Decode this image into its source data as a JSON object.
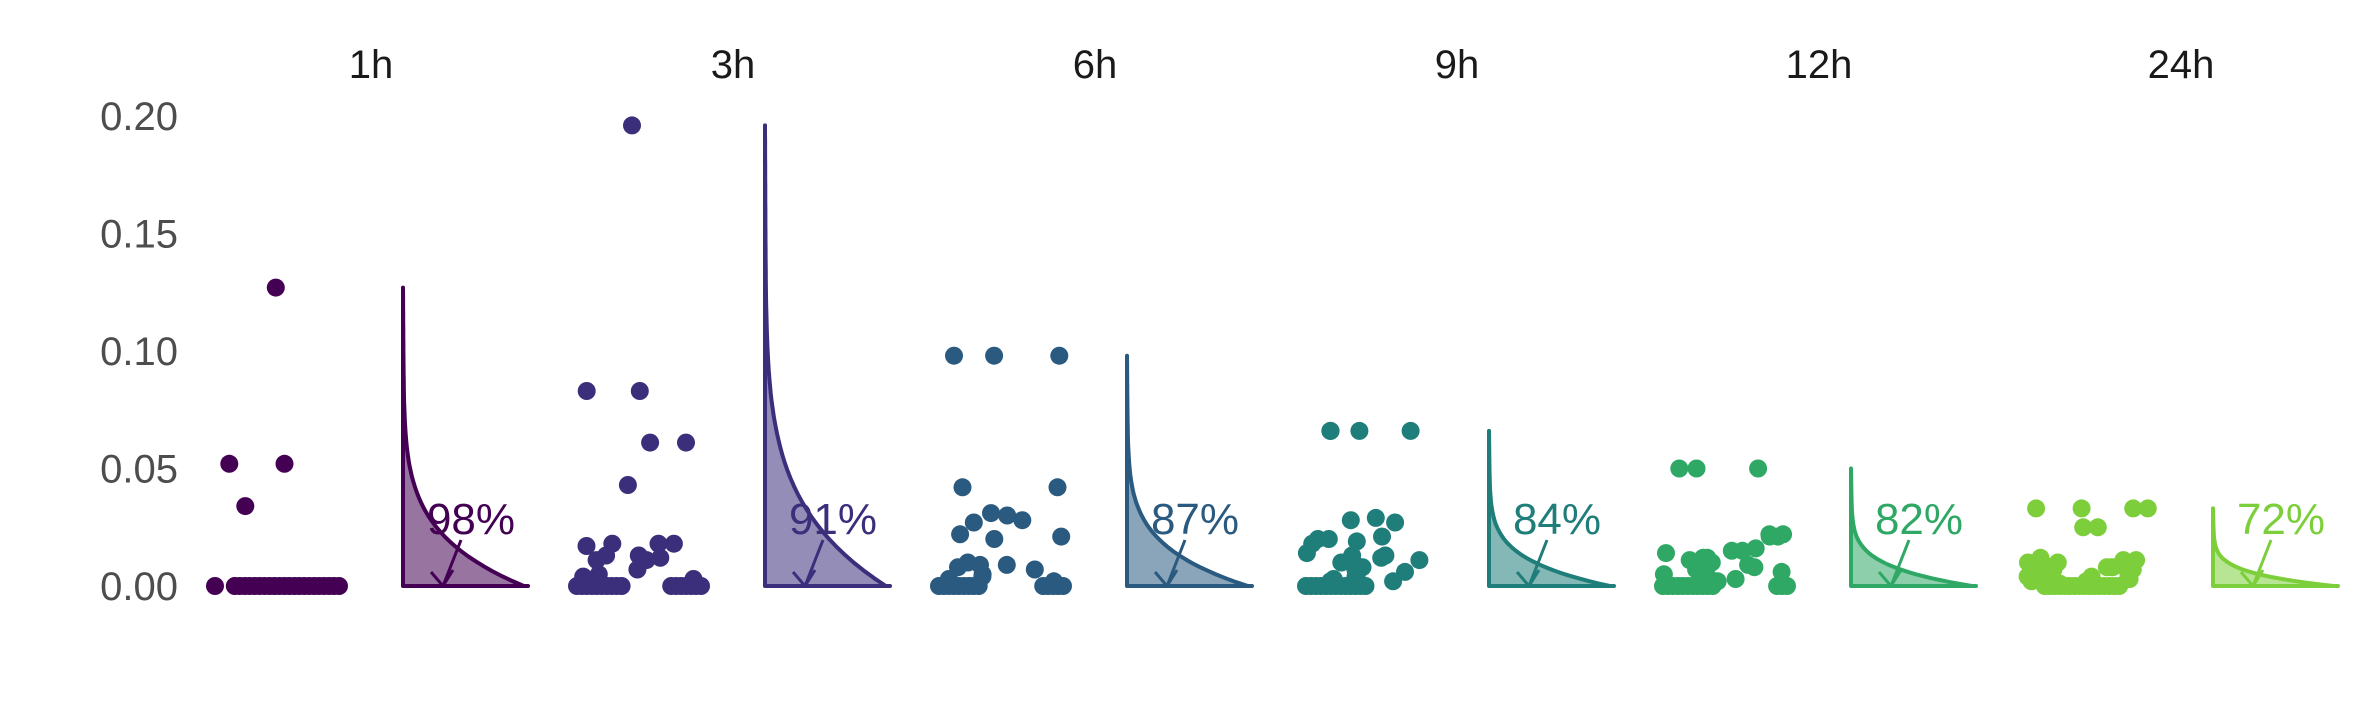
{
  "chart_data": {
    "type": "scatter",
    "subtype": "raincloud (jittered points + half density)",
    "title": "",
    "xlabel": "",
    "ylabel": "",
    "ylim": [
      0,
      0.2
    ],
    "y_ticks": [
      "0.00",
      "0.05",
      "0.10",
      "0.15",
      "0.20"
    ],
    "y_tick_values": [
      0,
      0.05,
      0.1,
      0.15,
      0.2
    ],
    "grid": false,
    "legend": "none",
    "panels": [
      {
        "name": "1h",
        "color": "#440154",
        "percent_label": "98%",
        "max_value": 0.127,
        "points": [
          0.127,
          0.052,
          0.052,
          0.034,
          0,
          0,
          0,
          0,
          0,
          0,
          0,
          0,
          0,
          0,
          0,
          0,
          0,
          0,
          0,
          0,
          0,
          0,
          0,
          0,
          0,
          0,
          0
        ]
      },
      {
        "name": "3h",
        "color": "#3b2f7c",
        "percent_label": "91%",
        "max_value": 0.196,
        "points": [
          0.196,
          0.083,
          0.083,
          0.061,
          0.061,
          0.043,
          0.018,
          0.018,
          0.018,
          0.017,
          0.013,
          0.013,
          0.012,
          0.011,
          0.011,
          0.007,
          0.005,
          0.004,
          0.003,
          0,
          0,
          0,
          0,
          0,
          0,
          0,
          0,
          0,
          0,
          0,
          0,
          0,
          0,
          0,
          0,
          0
        ]
      },
      {
        "name": "6h",
        "color": "#2a5a80",
        "percent_label": "87%",
        "max_value": 0.098,
        "points": [
          0.098,
          0.098,
          0.098,
          0.042,
          0.042,
          0.031,
          0.03,
          0.028,
          0.027,
          0.022,
          0.021,
          0.02,
          0.01,
          0.009,
          0.009,
          0.008,
          0.007,
          0.005,
          0.004,
          0.003,
          0.002,
          0,
          0,
          0,
          0,
          0,
          0,
          0,
          0,
          0,
          0,
          0,
          0,
          0,
          0
        ]
      },
      {
        "name": "9h",
        "color": "#1f7d7a",
        "percent_label": "84%",
        "max_value": 0.066,
        "points": [
          0.066,
          0.066,
          0.066,
          0.066,
          0.029,
          0.028,
          0.027,
          0.021,
          0.02,
          0.02,
          0.019,
          0.018,
          0.014,
          0.013,
          0.013,
          0.012,
          0.011,
          0.01,
          0.009,
          0.008,
          0.007,
          0.006,
          0.005,
          0.004,
          0.003,
          0.002,
          0.002,
          0,
          0,
          0,
          0,
          0,
          0,
          0,
          0,
          0,
          0,
          0,
          0,
          0
        ]
      },
      {
        "name": "12h",
        "color": "#2fa866",
        "percent_label": "82%",
        "max_value": 0.05,
        "points": [
          0.05,
          0.05,
          0.05,
          0.022,
          0.022,
          0.021,
          0.021,
          0.016,
          0.015,
          0.015,
          0.014,
          0.012,
          0.012,
          0.011,
          0.01,
          0.009,
          0.008,
          0.007,
          0.006,
          0.005,
          0.004,
          0.003,
          0.002,
          0,
          0,
          0,
          0,
          0,
          0,
          0,
          0,
          0,
          0,
          0,
          0,
          0,
          0
        ]
      },
      {
        "name": "24h",
        "color": "#7ccf3b",
        "percent_label": "72%",
        "max_value": 0.033,
        "points": [
          0.033,
          0.033,
          0.033,
          0.033,
          0.025,
          0.025,
          0.012,
          0.011,
          0.011,
          0.01,
          0.01,
          0.009,
          0.008,
          0.008,
          0.008,
          0.007,
          0.007,
          0.006,
          0.006,
          0.005,
          0.005,
          0.004,
          0.004,
          0.003,
          0.003,
          0.002,
          0.002,
          0.002,
          0.001,
          0.001,
          0,
          0,
          0,
          0,
          0,
          0,
          0,
          0,
          0,
          0,
          0,
          0,
          0,
          0,
          0,
          0
        ]
      }
    ]
  }
}
